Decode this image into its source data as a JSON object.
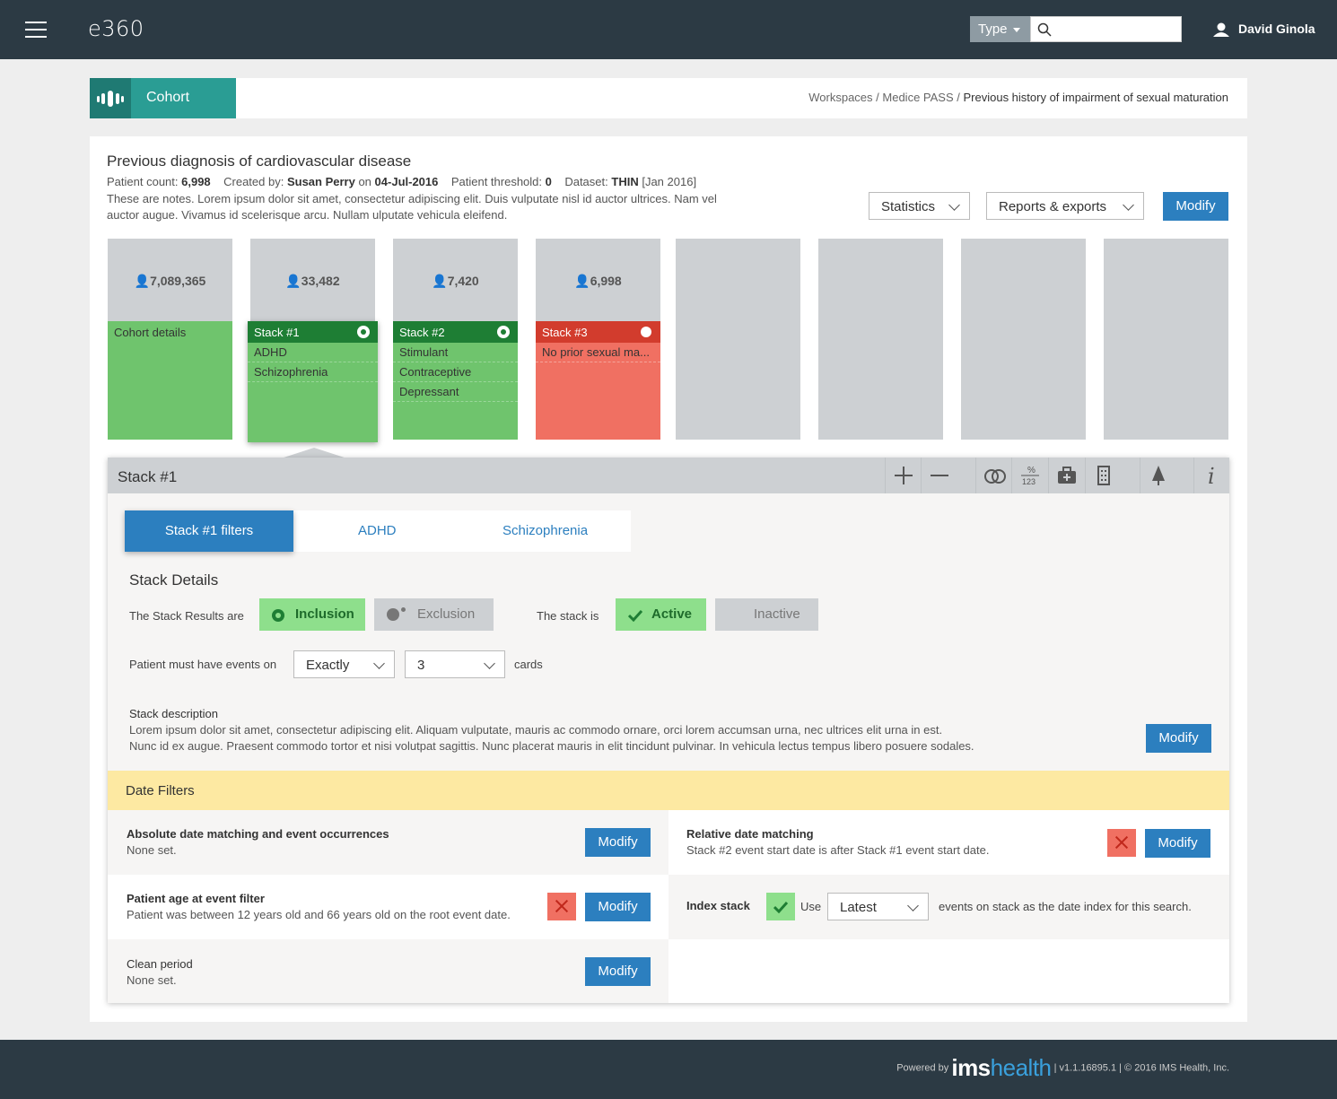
{
  "app": {
    "logo": "e360",
    "search_type": "Type",
    "user_name": "David Ginola"
  },
  "banner": {
    "tab_label": "Cohort",
    "breadcrumb": [
      "Workspaces",
      "Medice PASS",
      "Previous history of impairment of sexual maturation"
    ]
  },
  "cohort": {
    "title": "Previous diagnosis of cardiovascular disease",
    "patient_count_label": "Patient count:",
    "patient_count": "6,998",
    "created_by_label": "Created by:",
    "created_by": "Susan Perry",
    "on_label": "on",
    "created_date": "04-Jul-2016",
    "threshold_label": "Patient threshold:",
    "threshold": "0",
    "dataset_label": "Dataset:",
    "dataset": "THIN",
    "dataset_period": "Jan 2016",
    "notes": "These are notes. Lorem ipsum dolor sit amet, consectetur adipiscing elit. Duis vulputate nisl id auctor ultrices. Nam vel auctor augue. Vivamus id scelerisque arcu. Nullam ulputate vehicula eleifend.",
    "statistics": "Statistics",
    "reports": "Reports & exports",
    "modify": "Modify"
  },
  "columns": [
    {
      "count": "7,089,365",
      "label": "Cohort details"
    },
    {
      "count": "33,482",
      "label": "Stack #1",
      "items": [
        "ADHD",
        "Schizophrenia"
      ]
    },
    {
      "count": "7,420",
      "label": "Stack #2",
      "items": [
        "Stimulant",
        "Contraceptive",
        "Depressant"
      ]
    },
    {
      "count": "6,998",
      "label": "Stack #3",
      "items": [
        "No prior sexual ma..."
      ]
    }
  ],
  "panel": {
    "title": "Stack #1",
    "tabs": [
      "Stack #1 filters",
      "ADHD",
      "Schizophrenia"
    ],
    "details_heading": "Stack Details",
    "results_are": "The Stack Results are",
    "inclusion": "Inclusion",
    "exclusion": "Exclusion",
    "stack_is": "The stack is",
    "active": "Active",
    "inactive": "Inactive",
    "events_on": "Patient must have events on",
    "match_mode": "Exactly",
    "card_count": "3",
    "cards": "cards",
    "desc_heading": "Stack description",
    "desc_line1": "Lorem ipsum dolor sit amet, consectetur adipiscing elit. Aliquam vulputate, mauris ac commodo ornare, orci lorem accumsan urna, nec ultrices elit urna in est.",
    "desc_line2": "Nunc id ex augue. Praesent commodo tortor et nisi volutpat sagittis. Nunc placerat mauris in elit tincidunt pulvinar. In vehicula lectus tempus libero posuere sodales.",
    "modify": "Modify"
  },
  "date_filters": {
    "heading": "Date Filters",
    "abs_title": "Absolute date matching and event occurrences",
    "abs_text": "None set.",
    "rel_title": "Relative date matching",
    "rel_text": "Stack #2 event start date is after Stack #1 event start date.",
    "age_title": "Patient age at event filter",
    "age_text": "Patient was between 12 years old and 66 years old on the root event date.",
    "index_title": "Index stack",
    "index_use": "Use",
    "index_value": "Latest",
    "index_text": "events on stack as the date index for this search.",
    "clean_title": "Clean period",
    "clean_text": "None set.",
    "modify": "Modify"
  },
  "footer": {
    "powered": "Powered by",
    "ims": "ims",
    "health": "health",
    "version": "| v1.1.16895.1 | © 2016 IMS Health, Inc."
  }
}
